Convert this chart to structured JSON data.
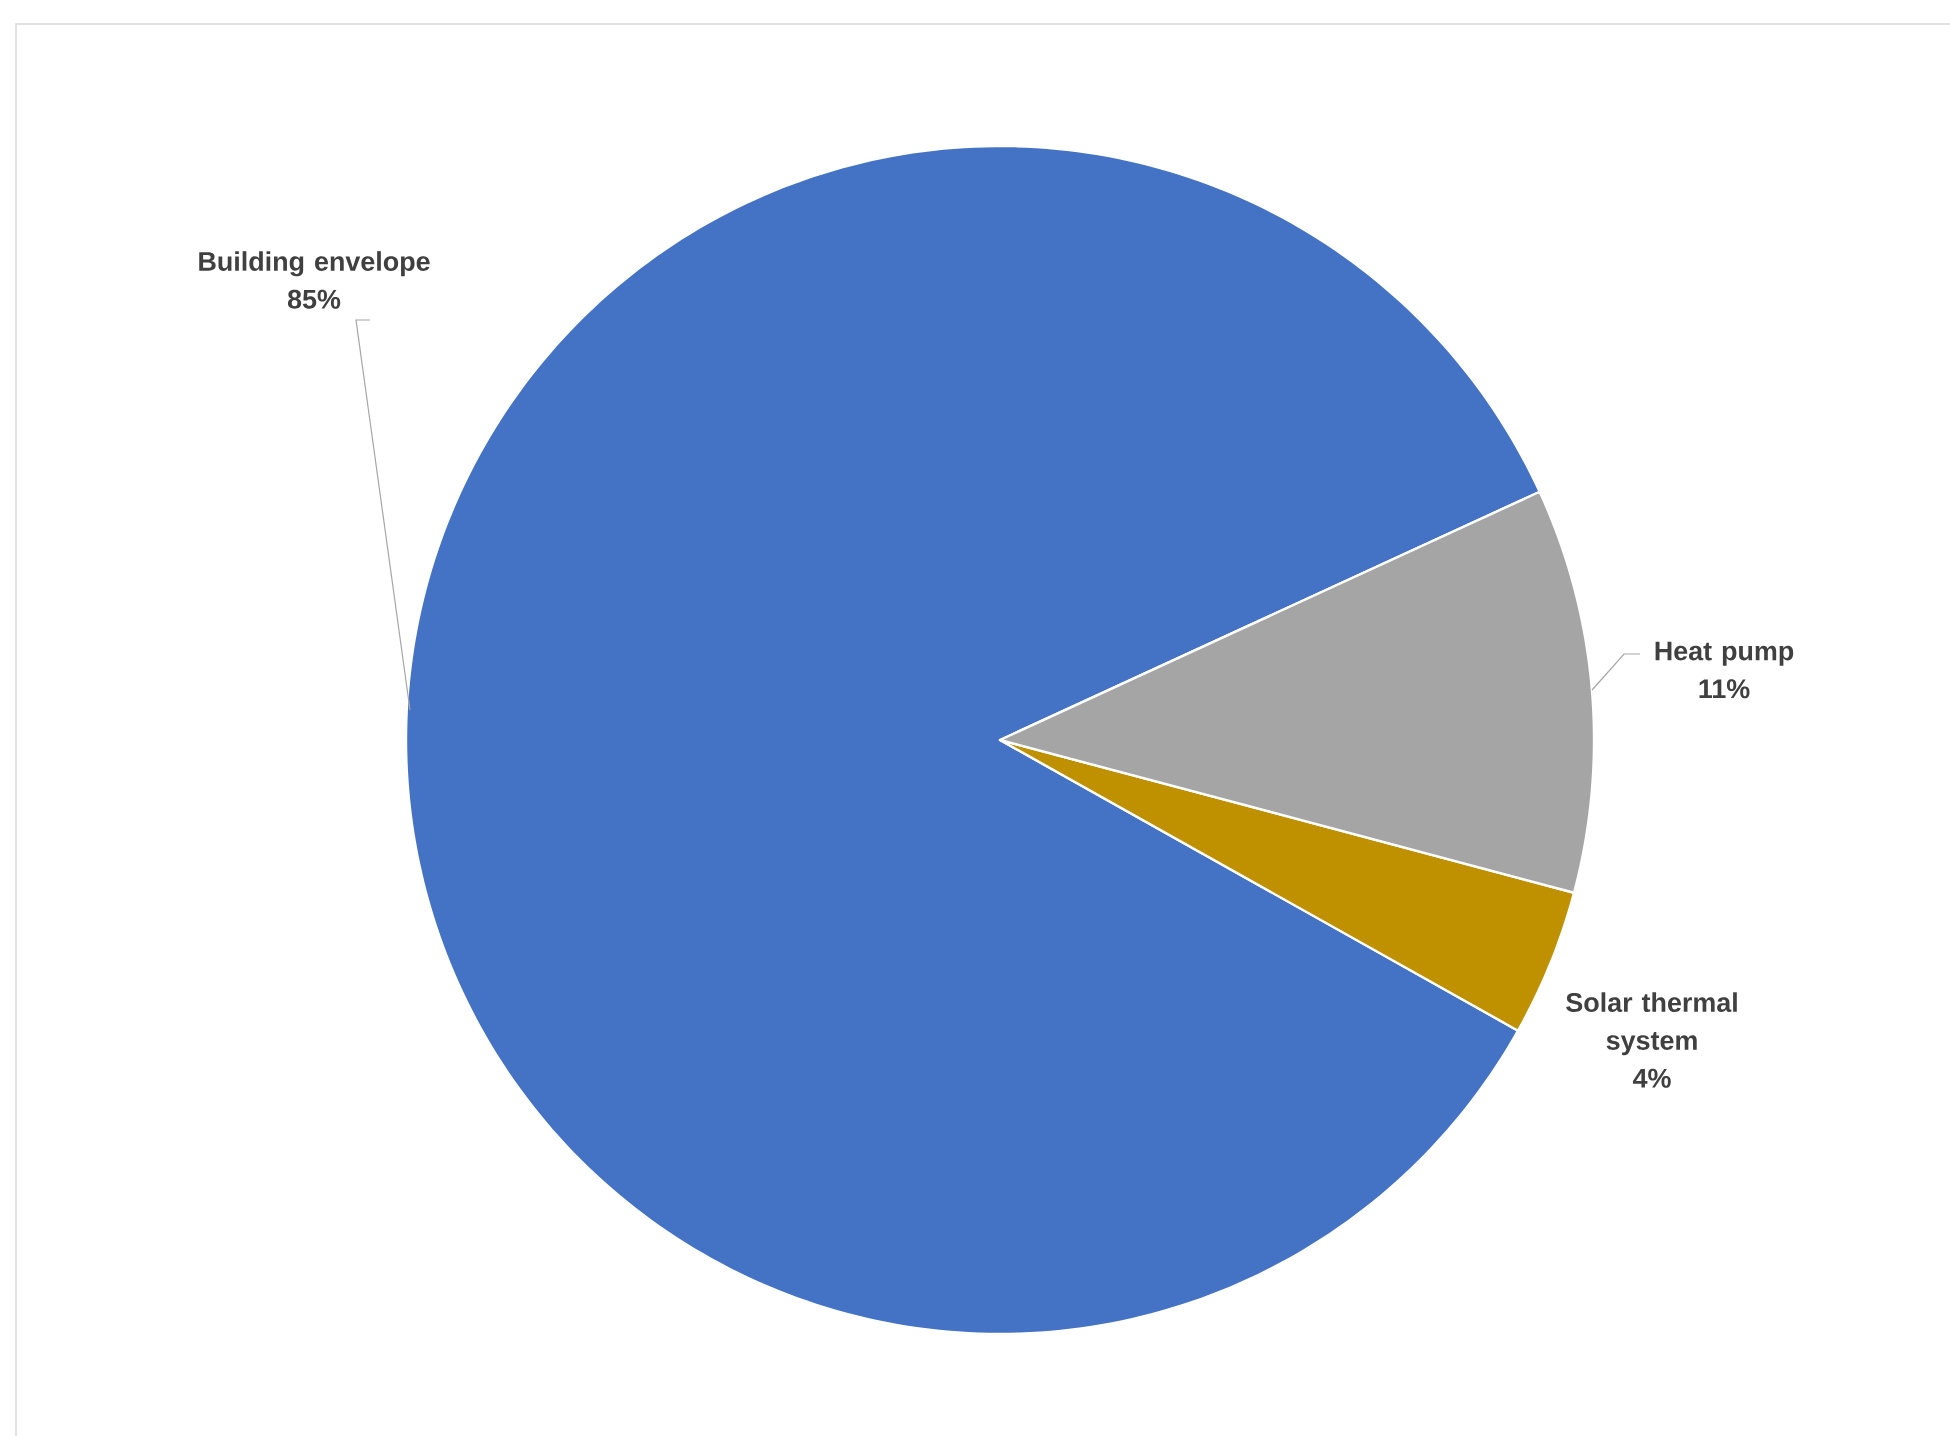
{
  "chart_data": {
    "type": "pie",
    "categories": [
      "Building envelope",
      "Solar thermal system",
      "Heat pump"
    ],
    "values": [
      85,
      4,
      11
    ],
    "value_labels": [
      "85%",
      "4%",
      "11%"
    ],
    "colors": [
      "#4472c4",
      "#bf9000",
      "#a5a5a5"
    ]
  }
}
